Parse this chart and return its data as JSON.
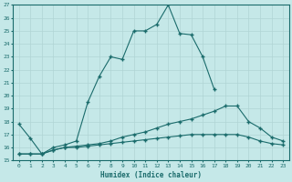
{
  "xlabel": "Humidex (Indice chaleur)",
  "background_color": "#c5e8e8",
  "line_color": "#1a6b6b",
  "grid_color": "#b0d4d4",
  "xlim": [
    -0.5,
    23.5
  ],
  "ylim": [
    15,
    27
  ],
  "xticks": [
    0,
    1,
    2,
    3,
    4,
    5,
    6,
    7,
    8,
    9,
    10,
    11,
    12,
    13,
    14,
    15,
    16,
    17,
    18,
    19,
    20,
    21,
    22,
    23
  ],
  "yticks": [
    15,
    16,
    17,
    18,
    19,
    20,
    21,
    22,
    23,
    24,
    25,
    26,
    27
  ],
  "line1_x": [
    0,
    1,
    2,
    3,
    4,
    5,
    6,
    7,
    8,
    9,
    10,
    11,
    12,
    13,
    14,
    15,
    16,
    17,
    18,
    19,
    20,
    21,
    22,
    23
  ],
  "line1_y": [
    17.8,
    16.7,
    15.5,
    16.0,
    16.2,
    16.5,
    19.5,
    21.5,
    23.0,
    22.8,
    25.0,
    25.0,
    25.5,
    27.0,
    24.8,
    24.7,
    23.0,
    20.5,
    null,
    null,
    null,
    null,
    null,
    null
  ],
  "line2_x": [
    0,
    1,
    2,
    3,
    4,
    5,
    6,
    7,
    8,
    9,
    10,
    11,
    12,
    13,
    14,
    15,
    16,
    17,
    18,
    19,
    20,
    21,
    22,
    23
  ],
  "line2_y": [
    15.5,
    15.5,
    15.5,
    15.8,
    16.0,
    16.1,
    16.2,
    16.3,
    16.5,
    16.8,
    17.0,
    17.2,
    17.5,
    17.8,
    18.0,
    18.2,
    18.5,
    18.8,
    19.2,
    19.2,
    18.0,
    17.5,
    16.8,
    16.5
  ],
  "line3_x": [
    0,
    1,
    2,
    3,
    4,
    5,
    6,
    7,
    8,
    9,
    10,
    11,
    12,
    13,
    14,
    15,
    16,
    17,
    18,
    19,
    20,
    21,
    22,
    23
  ],
  "line3_y": [
    15.5,
    15.5,
    15.5,
    15.8,
    16.0,
    16.0,
    16.1,
    16.2,
    16.3,
    16.4,
    16.5,
    16.6,
    16.7,
    16.8,
    16.9,
    17.0,
    17.0,
    17.0,
    17.0,
    17.0,
    16.8,
    16.5,
    16.3,
    16.2
  ]
}
